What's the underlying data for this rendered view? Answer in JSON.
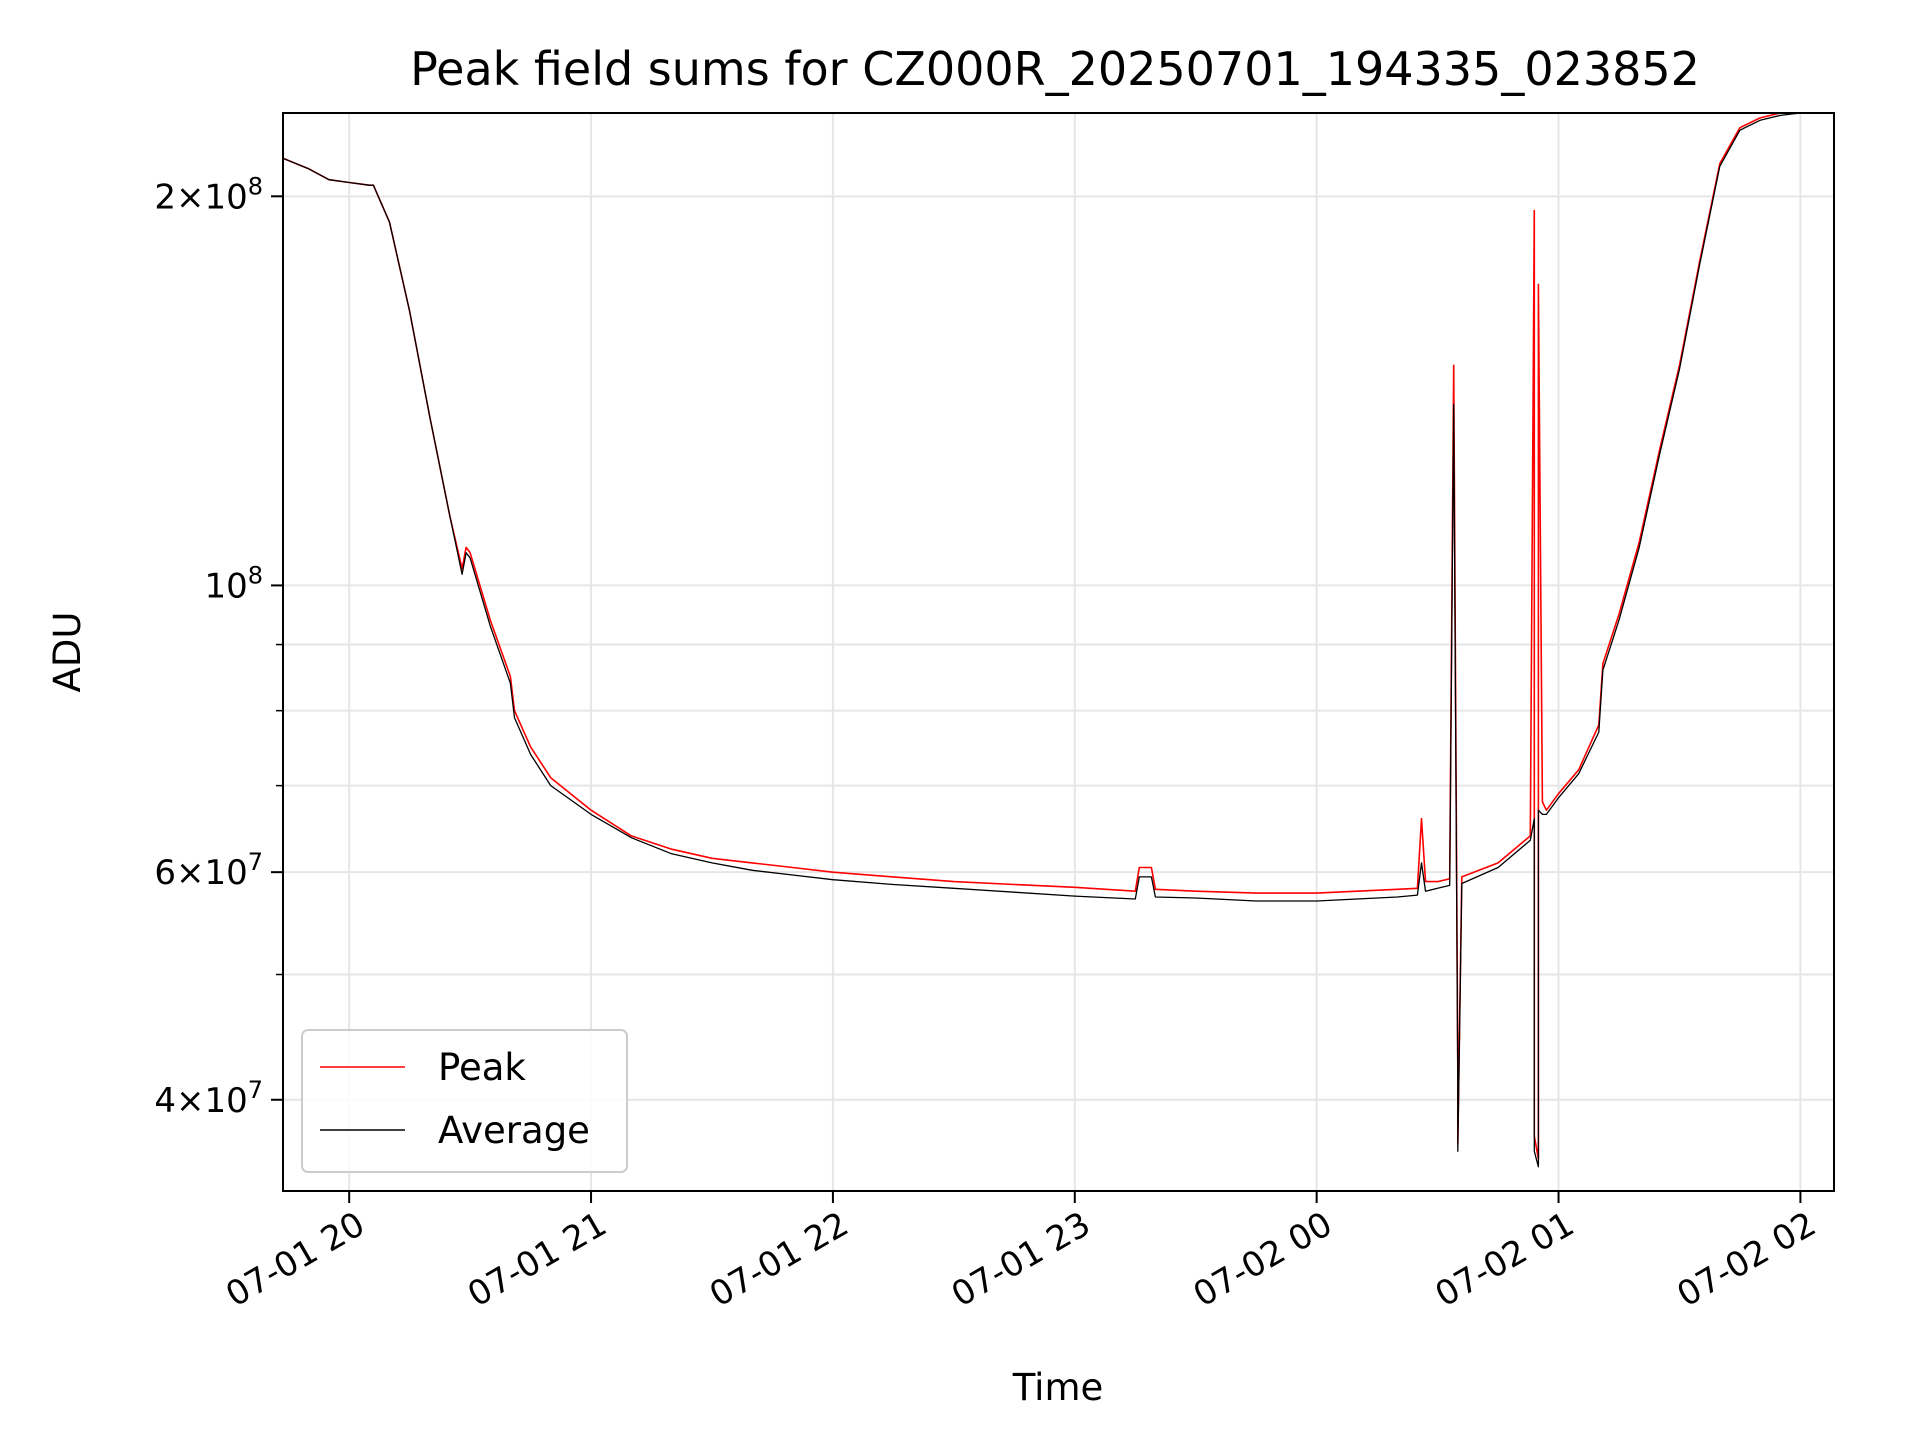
{
  "chart_data": {
    "type": "line",
    "title": "Peak field sums for CZ000R_20250701_194335_023852",
    "xlabel": "Time",
    "ylabel": "ADU",
    "y_scale": "log",
    "ylim": [
      34000000,
      232000000
    ],
    "xlim": [
      "2025-07-01 19:43:35",
      "2025-07-02 02:08:20"
    ],
    "x_ticks": [
      {
        "value": "2025-07-01 20:00",
        "label": "07-01 20"
      },
      {
        "value": "2025-07-01 21:00",
        "label": "07-01 21"
      },
      {
        "value": "2025-07-01 22:00",
        "label": "07-01 22"
      },
      {
        "value": "2025-07-01 23:00",
        "label": "07-01 23"
      },
      {
        "value": "2025-07-02 00:00",
        "label": "07-02 00"
      },
      {
        "value": "2025-07-02 01:00",
        "label": "07-02 01"
      },
      {
        "value": "2025-07-02 02:00",
        "label": "07-02 02"
      }
    ],
    "y_ticks_major": [
      {
        "value": 40000000,
        "label": "4×10⁷",
        "mant": "4",
        "exp": "7"
      },
      {
        "value": 60000000,
        "label": "6×10⁷",
        "mant": "6",
        "exp": "7"
      },
      {
        "value": 100000000,
        "label": "10⁸",
        "mant": "",
        "exp": "8"
      },
      {
        "value": 200000000,
        "label": "2×10⁸",
        "mant": "2",
        "exp": "8"
      }
    ],
    "y_ticks_minor": [
      50000000,
      70000000,
      80000000,
      90000000,
      300000000
    ],
    "grid": true,
    "legend": {
      "position": "lower-left"
    },
    "series": [
      {
        "name": "Peak",
        "color": "#ff0000",
        "x": [
          "2025-07-01 19:43:35",
          "2025-07-01 19:50",
          "2025-07-01 19:55",
          "2025-07-01 20:00",
          "2025-07-01 20:05",
          "2025-07-01 20:06",
          "2025-07-01 20:10",
          "2025-07-01 20:15",
          "2025-07-01 20:20",
          "2025-07-01 20:25",
          "2025-07-01 20:28",
          "2025-07-01 20:29",
          "2025-07-01 20:30",
          "2025-07-01 20:35",
          "2025-07-01 20:40",
          "2025-07-01 20:41",
          "2025-07-01 20:45",
          "2025-07-01 20:50",
          "2025-07-01 21:00",
          "2025-07-01 21:10",
          "2025-07-01 21:20",
          "2025-07-01 21:30",
          "2025-07-01 21:40",
          "2025-07-01 21:50",
          "2025-07-01 22:00",
          "2025-07-01 22:15",
          "2025-07-01 22:30",
          "2025-07-01 22:45",
          "2025-07-01 23:00",
          "2025-07-01 23:15",
          "2025-07-01 23:16",
          "2025-07-01 23:19",
          "2025-07-01 23:20",
          "2025-07-01 23:30",
          "2025-07-01 23:45",
          "2025-07-02 00:00",
          "2025-07-02 00:10",
          "2025-07-02 00:20",
          "2025-07-02 00:25",
          "2025-07-02 00:26",
          "2025-07-02 00:27",
          "2025-07-02 00:30",
          "2025-07-02 00:33",
          "2025-07-02 00:34",
          "2025-07-02 00:35",
          "2025-07-02 00:35",
          "2025-07-02 00:36",
          "2025-07-02 00:45",
          "2025-07-02 00:53",
          "2025-07-02 00:54",
          "2025-07-02 00:54",
          "2025-07-02 00:55",
          "2025-07-02 00:55",
          "2025-07-02 00:56",
          "2025-07-02 00:57",
          "2025-07-02 01:00",
          "2025-07-02 01:05",
          "2025-07-02 01:10",
          "2025-07-02 01:11",
          "2025-07-02 01:15",
          "2025-07-02 01:20",
          "2025-07-02 01:25",
          "2025-07-02 01:30",
          "2025-07-02 01:35",
          "2025-07-02 01:40",
          "2025-07-02 01:45",
          "2025-07-02 01:50",
          "2025-07-02 01:55",
          "2025-07-02 02:00",
          "2025-07-02 02:08:20"
        ],
        "values": [
          214000000,
          210000000,
          206000000,
          205000000,
          204000000,
          204000000,
          191000000,
          163000000,
          135000000,
          113000000,
          103000000,
          107000000,
          106000000,
          94000000,
          85000000,
          80000000,
          75000000,
          71000000,
          67000000,
          64000000,
          62500000,
          61500000,
          61000000,
          60500000,
          60000000,
          59500000,
          59000000,
          58700000,
          58400000,
          58000000,
          60500000,
          60500000,
          58200000,
          58000000,
          57800000,
          57800000,
          58000000,
          58200000,
          58300000,
          66000000,
          59000000,
          59000000,
          59300000,
          148000000,
          42000000,
          37000000,
          59500000,
          61000000,
          64000000,
          195000000,
          37500000,
          36000000,
          171000000,
          68000000,
          67000000,
          69000000,
          72000000,
          78000000,
          87000000,
          95000000,
          108000000,
          127000000,
          148000000,
          178000000,
          212000000,
          226000000,
          230000000,
          232000000,
          233000000,
          233000000
        ]
      },
      {
        "name": "Average",
        "color": "#000000",
        "x": [
          "2025-07-01 19:43:35",
          "2025-07-01 19:50",
          "2025-07-01 19:55",
          "2025-07-01 20:00",
          "2025-07-01 20:05",
          "2025-07-01 20:06",
          "2025-07-01 20:10",
          "2025-07-01 20:15",
          "2025-07-01 20:20",
          "2025-07-01 20:25",
          "2025-07-01 20:28",
          "2025-07-01 20:29",
          "2025-07-01 20:30",
          "2025-07-01 20:35",
          "2025-07-01 20:40",
          "2025-07-01 20:41",
          "2025-07-01 20:45",
          "2025-07-01 20:50",
          "2025-07-01 21:00",
          "2025-07-01 21:10",
          "2025-07-01 21:20",
          "2025-07-01 21:30",
          "2025-07-01 21:40",
          "2025-07-01 21:50",
          "2025-07-01 22:00",
          "2025-07-01 22:15",
          "2025-07-01 22:30",
          "2025-07-01 22:45",
          "2025-07-01 23:00",
          "2025-07-01 23:15",
          "2025-07-01 23:16",
          "2025-07-01 23:19",
          "2025-07-01 23:20",
          "2025-07-01 23:30",
          "2025-07-01 23:45",
          "2025-07-02 00:00",
          "2025-07-02 00:10",
          "2025-07-02 00:20",
          "2025-07-02 00:25",
          "2025-07-02 00:26",
          "2025-07-02 00:27",
          "2025-07-02 00:30",
          "2025-07-02 00:33",
          "2025-07-02 00:34",
          "2025-07-02 00:35",
          "2025-07-02 00:35",
          "2025-07-02 00:36",
          "2025-07-02 00:45",
          "2025-07-02 00:53",
          "2025-07-02 00:54",
          "2025-07-02 00:54",
          "2025-07-02 00:55",
          "2025-07-02 00:55",
          "2025-07-02 00:56",
          "2025-07-02 00:57",
          "2025-07-02 01:00",
          "2025-07-02 01:05",
          "2025-07-02 01:10",
          "2025-07-02 01:11",
          "2025-07-02 01:15",
          "2025-07-02 01:20",
          "2025-07-02 01:25",
          "2025-07-02 01:30",
          "2025-07-02 01:35",
          "2025-07-02 01:40",
          "2025-07-02 01:45",
          "2025-07-02 01:50",
          "2025-07-02 01:55",
          "2025-07-02 02:00",
          "2025-07-02 02:08:20"
        ],
        "values": [
          214000000,
          210000000,
          206000000,
          205000000,
          204000000,
          204000000,
          191000000,
          163000000,
          135000000,
          113000000,
          102000000,
          106000000,
          105000000,
          93000000,
          84000000,
          79000000,
          74000000,
          70000000,
          66500000,
          63800000,
          62000000,
          61000000,
          60200000,
          59700000,
          59200000,
          58700000,
          58300000,
          57900000,
          57500000,
          57200000,
          59500000,
          59500000,
          57400000,
          57300000,
          57000000,
          57000000,
          57200000,
          57400000,
          57600000,
          61000000,
          58000000,
          58300000,
          58600000,
          138000000,
          41000000,
          36500000,
          58800000,
          60500000,
          63500000,
          66000000,
          36500000,
          35500000,
          67000000,
          66500000,
          66500000,
          68500000,
          71500000,
          77000000,
          86000000,
          94000000,
          107000000,
          126000000,
          147000000,
          177000000,
          211000000,
          225000000,
          229000000,
          231000000,
          232000000,
          233000000
        ]
      }
    ]
  }
}
